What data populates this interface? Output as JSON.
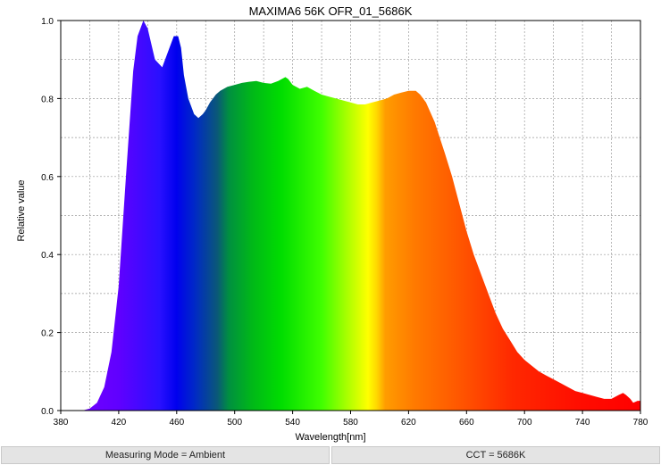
{
  "chart_data": {
    "type": "area",
    "title": "MAXIMA6 56K OFR_01_5686K",
    "xlabel": "Wavelength[nm]",
    "ylabel": "Relative value",
    "xlim": [
      380,
      780
    ],
    "ylim": [
      0,
      1.0
    ],
    "x_ticks": [
      "380",
      "420",
      "460",
      "500",
      "540",
      "580",
      "620",
      "660",
      "700",
      "740",
      "780"
    ],
    "y_ticks": [
      "0.0",
      "0.2",
      "0.4",
      "0.6",
      "0.8",
      "1.0"
    ],
    "grid": true,
    "fill": "visible-spectrum gradient",
    "series": [
      {
        "x": [
          380,
          395,
          400,
          405,
          410,
          415,
          420,
          425,
          430,
          433,
          437,
          440,
          445,
          450,
          455,
          458,
          461,
          463,
          465,
          468,
          472,
          475,
          478,
          480,
          483,
          487,
          490,
          495,
          500,
          505,
          510,
          515,
          520,
          525,
          530,
          535,
          537,
          540,
          545,
          550,
          555,
          560,
          565,
          570,
          575,
          580,
          585,
          590,
          595,
          600,
          605,
          610,
          615,
          620,
          625,
          628,
          632,
          638,
          645,
          650,
          655,
          660,
          665,
          670,
          675,
          680,
          685,
          690,
          695,
          700,
          705,
          710,
          715,
          720,
          725,
          730,
          735,
          740,
          745,
          750,
          755,
          760,
          765,
          768,
          770,
          773,
          775,
          778,
          780
        ],
        "y": [
          0,
          0,
          0.005,
          0.02,
          0.06,
          0.15,
          0.32,
          0.6,
          0.87,
          0.96,
          1.0,
          0.98,
          0.9,
          0.88,
          0.93,
          0.96,
          0.96,
          0.93,
          0.86,
          0.8,
          0.76,
          0.75,
          0.76,
          0.77,
          0.79,
          0.81,
          0.82,
          0.83,
          0.835,
          0.84,
          0.843,
          0.845,
          0.84,
          0.838,
          0.845,
          0.855,
          0.85,
          0.835,
          0.825,
          0.83,
          0.82,
          0.81,
          0.805,
          0.8,
          0.795,
          0.79,
          0.785,
          0.785,
          0.79,
          0.795,
          0.8,
          0.81,
          0.815,
          0.82,
          0.82,
          0.81,
          0.79,
          0.74,
          0.66,
          0.6,
          0.53,
          0.46,
          0.4,
          0.35,
          0.3,
          0.25,
          0.21,
          0.18,
          0.15,
          0.13,
          0.115,
          0.1,
          0.09,
          0.08,
          0.07,
          0.06,
          0.05,
          0.045,
          0.04,
          0.035,
          0.03,
          0.03,
          0.04,
          0.045,
          0.04,
          0.03,
          0.02,
          0.025,
          0.025
        ]
      }
    ]
  },
  "footer": {
    "left": "Measuring Mode = Ambient",
    "right": "CCT = 5686K"
  }
}
